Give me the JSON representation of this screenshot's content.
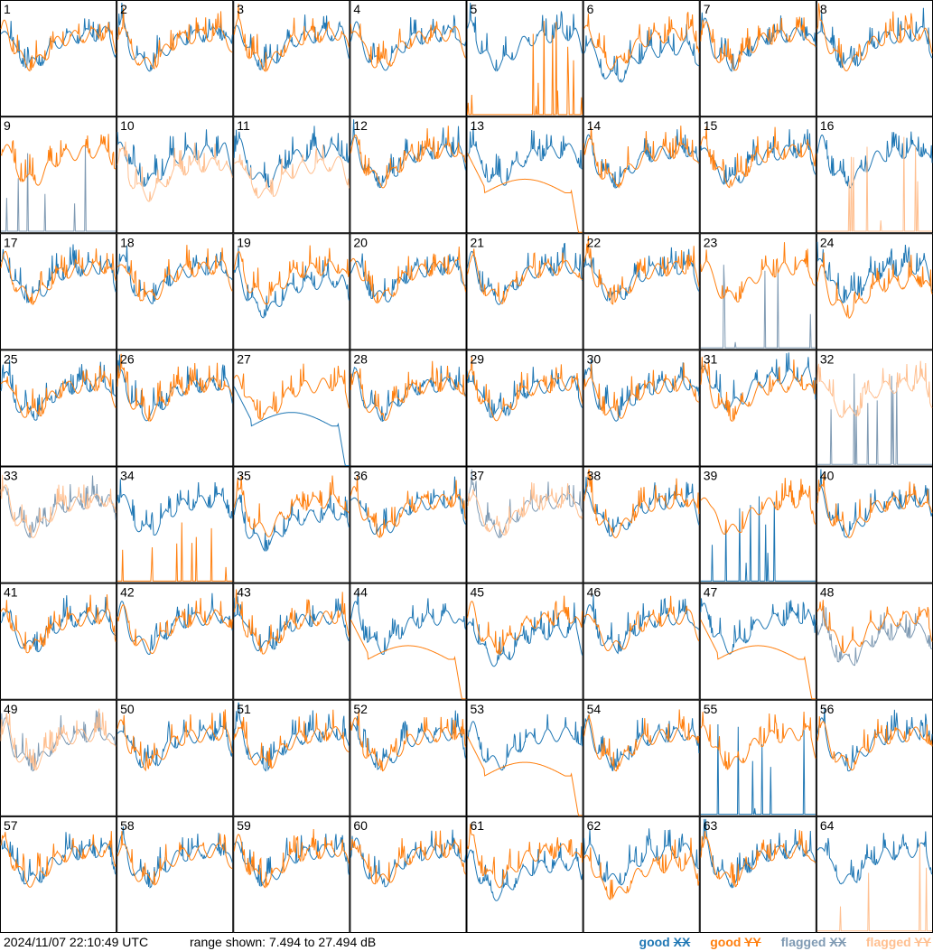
{
  "footer": {
    "timestamp": "2024/11/07 22:10:49 UTC",
    "range_text": "range shown: 7.494 to 27.494 dB",
    "legend": {
      "good_xx": "good XX",
      "good_yy": "good YY",
      "flagged_xx": "flagged XX",
      "flagged_yy": "flagged YY"
    }
  },
  "chart_data": {
    "type": "line",
    "panel_count": 64,
    "y_range_db": [
      7.494,
      27.494
    ],
    "colors": {
      "good_xx": "#1f77b4",
      "good_yy": "#ff7f0e",
      "flagged_xx": "#7f9ab3",
      "flagged_yy": "#ffbf8f"
    },
    "panels": [
      {
        "label": "1",
        "xx": "good",
        "yy": "good",
        "style": "spiky"
      },
      {
        "label": "2",
        "xx": "good",
        "yy": "good",
        "style": "normal"
      },
      {
        "label": "3",
        "xx": "good",
        "yy": "good",
        "style": "normal"
      },
      {
        "label": "4",
        "xx": "good",
        "yy": "good",
        "style": "normal"
      },
      {
        "label": "5",
        "xx": "good",
        "yy": "good",
        "style": "yy_dead"
      },
      {
        "label": "6",
        "xx": "good",
        "yy": "good",
        "style": "xx_low"
      },
      {
        "label": "7",
        "xx": "good",
        "yy": "good",
        "style": "normal"
      },
      {
        "label": "8",
        "xx": "good",
        "yy": "good",
        "style": "normal"
      },
      {
        "label": "9",
        "xx": "flagged",
        "yy": "good",
        "style": "xx_dead"
      },
      {
        "label": "10",
        "xx": "good",
        "yy": "flagged",
        "style": "yy_low"
      },
      {
        "label": "11",
        "xx": "good",
        "yy": "flagged",
        "style": "yy_low"
      },
      {
        "label": "12",
        "xx": "good",
        "yy": "good",
        "style": "normal"
      },
      {
        "label": "13",
        "xx": "good",
        "yy": "good",
        "style": "yy_smooth"
      },
      {
        "label": "14",
        "xx": "good",
        "yy": "good",
        "style": "normal"
      },
      {
        "label": "15",
        "xx": "good",
        "yy": "good",
        "style": "normal"
      },
      {
        "label": "16",
        "xx": "good",
        "yy": "flagged",
        "style": "yy_dead"
      },
      {
        "label": "17",
        "xx": "good",
        "yy": "good",
        "style": "normal"
      },
      {
        "label": "18",
        "xx": "good",
        "yy": "good",
        "style": "normal"
      },
      {
        "label": "19",
        "xx": "good",
        "yy": "good",
        "style": "xx_low"
      },
      {
        "label": "20",
        "xx": "good",
        "yy": "good",
        "style": "normal"
      },
      {
        "label": "21",
        "xx": "good",
        "yy": "good",
        "style": "normal"
      },
      {
        "label": "22",
        "xx": "good",
        "yy": "good",
        "style": "normal"
      },
      {
        "label": "23",
        "xx": "flagged",
        "yy": "good",
        "style": "xx_bad"
      },
      {
        "label": "24",
        "xx": "good",
        "yy": "good",
        "style": "yy_low"
      },
      {
        "label": "25",
        "xx": "good",
        "yy": "good",
        "style": "normal"
      },
      {
        "label": "26",
        "xx": "good",
        "yy": "good",
        "style": "normal"
      },
      {
        "label": "27",
        "xx": "good",
        "yy": "good",
        "style": "xx_smooth"
      },
      {
        "label": "28",
        "xx": "good",
        "yy": "good",
        "style": "normal"
      },
      {
        "label": "29",
        "xx": "good",
        "yy": "good",
        "style": "normal"
      },
      {
        "label": "30",
        "xx": "good",
        "yy": "good",
        "style": "normal"
      },
      {
        "label": "31",
        "xx": "good",
        "yy": "good",
        "style": "xx_high"
      },
      {
        "label": "32",
        "xx": "flagged",
        "yy": "flagged",
        "style": "xx_dead"
      },
      {
        "label": "33",
        "xx": "flagged",
        "yy": "flagged",
        "style": "normal"
      },
      {
        "label": "34",
        "xx": "good",
        "yy": "good",
        "style": "yy_dead"
      },
      {
        "label": "35",
        "xx": "good",
        "yy": "good",
        "style": "xx_low"
      },
      {
        "label": "36",
        "xx": "good",
        "yy": "good",
        "style": "normal"
      },
      {
        "label": "37",
        "xx": "flagged",
        "yy": "flagged",
        "style": "normal"
      },
      {
        "label": "38",
        "xx": "good",
        "yy": "good",
        "style": "normal"
      },
      {
        "label": "39",
        "xx": "good",
        "yy": "good",
        "style": "xx_dead"
      },
      {
        "label": "40",
        "xx": "good",
        "yy": "good",
        "style": "normal"
      },
      {
        "label": "41",
        "xx": "good",
        "yy": "good",
        "style": "normal"
      },
      {
        "label": "42",
        "xx": "good",
        "yy": "good",
        "style": "normal"
      },
      {
        "label": "43",
        "xx": "good",
        "yy": "good",
        "style": "normal"
      },
      {
        "label": "44",
        "xx": "good",
        "yy": "good",
        "style": "yy_smooth"
      },
      {
        "label": "45",
        "xx": "good",
        "yy": "good",
        "style": "xx_low"
      },
      {
        "label": "46",
        "xx": "good",
        "yy": "good",
        "style": "normal"
      },
      {
        "label": "47",
        "xx": "good",
        "yy": "good",
        "style": "yy_smooth"
      },
      {
        "label": "48",
        "xx": "flagged",
        "yy": "good",
        "style": "xx_low"
      },
      {
        "label": "49",
        "xx": "flagged",
        "yy": "flagged",
        "style": "normal"
      },
      {
        "label": "50",
        "xx": "good",
        "yy": "good",
        "style": "normal"
      },
      {
        "label": "51",
        "xx": "good",
        "yy": "good",
        "style": "normal"
      },
      {
        "label": "52",
        "xx": "good",
        "yy": "good",
        "style": "normal"
      },
      {
        "label": "53",
        "xx": "good",
        "yy": "good",
        "style": "yy_smooth"
      },
      {
        "label": "54",
        "xx": "good",
        "yy": "good",
        "style": "normal"
      },
      {
        "label": "55",
        "xx": "good",
        "yy": "good",
        "style": "xx_bad"
      },
      {
        "label": "56",
        "xx": "good",
        "yy": "good",
        "style": "normal"
      },
      {
        "label": "57",
        "xx": "good",
        "yy": "good",
        "style": "normal"
      },
      {
        "label": "58",
        "xx": "good",
        "yy": "good",
        "style": "normal"
      },
      {
        "label": "59",
        "xx": "good",
        "yy": "good",
        "style": "normal"
      },
      {
        "label": "60",
        "xx": "good",
        "yy": "good",
        "style": "normal"
      },
      {
        "label": "61",
        "xx": "good",
        "yy": "good",
        "style": "xx_low"
      },
      {
        "label": "62",
        "xx": "good",
        "yy": "good",
        "style": "yy_low"
      },
      {
        "label": "63",
        "xx": "good",
        "yy": "good",
        "style": "normal"
      },
      {
        "label": "64",
        "xx": "good",
        "yy": "flagged",
        "style": "yy_dead"
      }
    ]
  }
}
